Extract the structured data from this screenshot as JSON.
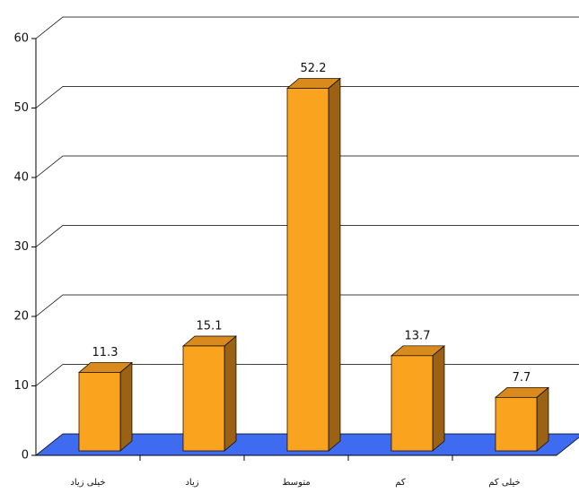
{
  "chart_data": {
    "type": "bar3d",
    "categories": [
      "خیلی زیاد",
      "زیاد",
      "متوسط",
      "کم",
      "خیلی کم"
    ],
    "values": [
      11.3,
      15.1,
      52.2,
      13.7,
      7.7
    ],
    "color": "#f9a31e",
    "floor_color": "#3f6bf0",
    "ylim": [
      0,
      60
    ],
    "yticks": [
      0,
      10,
      20,
      30,
      40,
      50,
      60
    ],
    "grid": true
  }
}
